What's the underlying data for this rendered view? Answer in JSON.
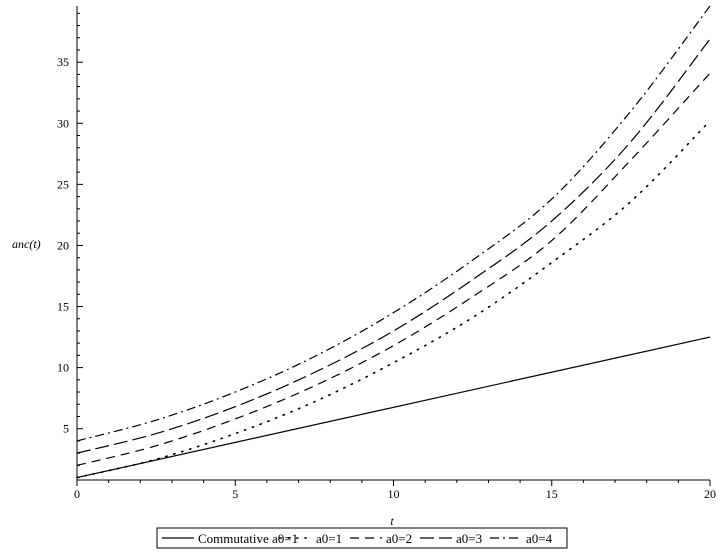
{
  "chart_data": {
    "type": "line",
    "xlabel": "t",
    "ylabel": "anc(t)",
    "xlim": [
      0,
      20
    ],
    "ylim": [
      0.8,
      39.6
    ],
    "xticks": [
      0,
      5,
      10,
      15,
      20
    ],
    "yticks": [
      5,
      10,
      15,
      20,
      25,
      30,
      35
    ],
    "series": [
      {
        "name": "Commutative a0=1",
        "dash": "solid",
        "x": [
          0,
          20
        ],
        "y": [
          1.0,
          12.5
        ]
      },
      {
        "name": "a0=1",
        "dash": "dot",
        "x": [
          0,
          2.5,
          5,
          7.5,
          10,
          12.5,
          15,
          17.5,
          20
        ],
        "y": [
          1.0,
          2.5,
          4.6,
          7.2,
          10.4,
          14.1,
          18.6,
          23.6,
          30.2
        ]
      },
      {
        "name": "a0=2",
        "dash": "dash",
        "x": [
          0,
          2.5,
          5,
          7.5,
          10,
          12.5,
          15,
          17.5,
          20
        ],
        "y": [
          2.0,
          3.6,
          5.8,
          8.5,
          11.8,
          15.8,
          20.4,
          27.0,
          34.1
        ]
      },
      {
        "name": "a0=3",
        "dash": "longdash",
        "x": [
          0,
          2.5,
          5,
          7.5,
          10,
          12.5,
          15,
          17.5,
          20
        ],
        "y": [
          3.0,
          4.6,
          6.8,
          9.6,
          13.0,
          17.2,
          22.0,
          28.5,
          36.9
        ]
      },
      {
        "name": "a0=4",
        "dash": "dashdot",
        "x": [
          0,
          2.5,
          5,
          7.5,
          10,
          12.5,
          15,
          17.5,
          20
        ],
        "y": [
          4.0,
          5.7,
          8.0,
          10.9,
          14.5,
          18.8,
          23.8,
          31.0,
          39.6
        ]
      }
    ],
    "legend": {
      "position": "bottom",
      "entries": [
        "Commutative a0=1",
        "a0=1",
        "a0=2",
        "a0=3",
        "a0=4"
      ]
    },
    "grid": false
  }
}
